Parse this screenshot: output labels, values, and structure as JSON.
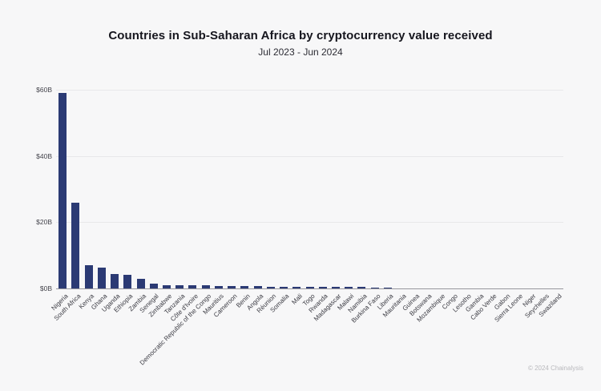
{
  "page": {
    "background": "#f7f7f8"
  },
  "header": {
    "title": "Countries in Sub-Saharan Africa by cryptocurrency value received",
    "subtitle": "Jul 2023 - Jun 2024"
  },
  "footer": {
    "copyright": "© 2024 Chainalysis"
  },
  "chart_data": {
    "type": "bar",
    "title": "Countries in Sub-Saharan Africa by cryptocurrency value received",
    "subtitle": "Jul 2023 - Jun 2024",
    "unit": "billions USD",
    "xlabel": "",
    "ylabel": "",
    "ylim": [
      0,
      60
    ],
    "yticks": [
      0,
      20,
      40,
      60
    ],
    "ytick_labels": [
      "$0B",
      "$20B",
      "$40B",
      "$60B"
    ],
    "grid": true,
    "legend": "none",
    "bar_color": "#2b3a74",
    "background_color": "#f7f7f8",
    "categories": [
      "Nigeria",
      "South Africa",
      "Kenya",
      "Ghana",
      "Uganda",
      "Ethiopia",
      "Zambia",
      "Senegal",
      "Zimbabwe",
      "Tanzania",
      "Côte d'Ivoire",
      "Democratic Republic of the Congo",
      "Mauritius",
      "Cameroon",
      "Benin",
      "Angola",
      "Réunion",
      "Somalia",
      "Mali",
      "Togo",
      "Rwanda",
      "Madagascar",
      "Malawi",
      "Namibia",
      "Burkina Faso",
      "Liberia",
      "Mauritania",
      "Guinea",
      "Botswana",
      "Mozambique",
      "Congo",
      "Lesotho",
      "Gambia",
      "Cabo Verde",
      "Gabon",
      "Sierra Leone",
      "Niger",
      "Seychelles",
      "Swaziland"
    ],
    "values": [
      59,
      26,
      7,
      6.3,
      4.3,
      4.0,
      2.8,
      1.4,
      0.95,
      0.9,
      0.87,
      0.85,
      0.8,
      0.72,
      0.65,
      0.62,
      0.58,
      0.55,
      0.52,
      0.5,
      0.45,
      0.42,
      0.4,
      0.37,
      0.33,
      0.28,
      0.12,
      0.1,
      0.09,
      0.08,
      0.07,
      0.06,
      0.05,
      0.05,
      0.04,
      0.04,
      0.03,
      0.03,
      0.02
    ]
  }
}
